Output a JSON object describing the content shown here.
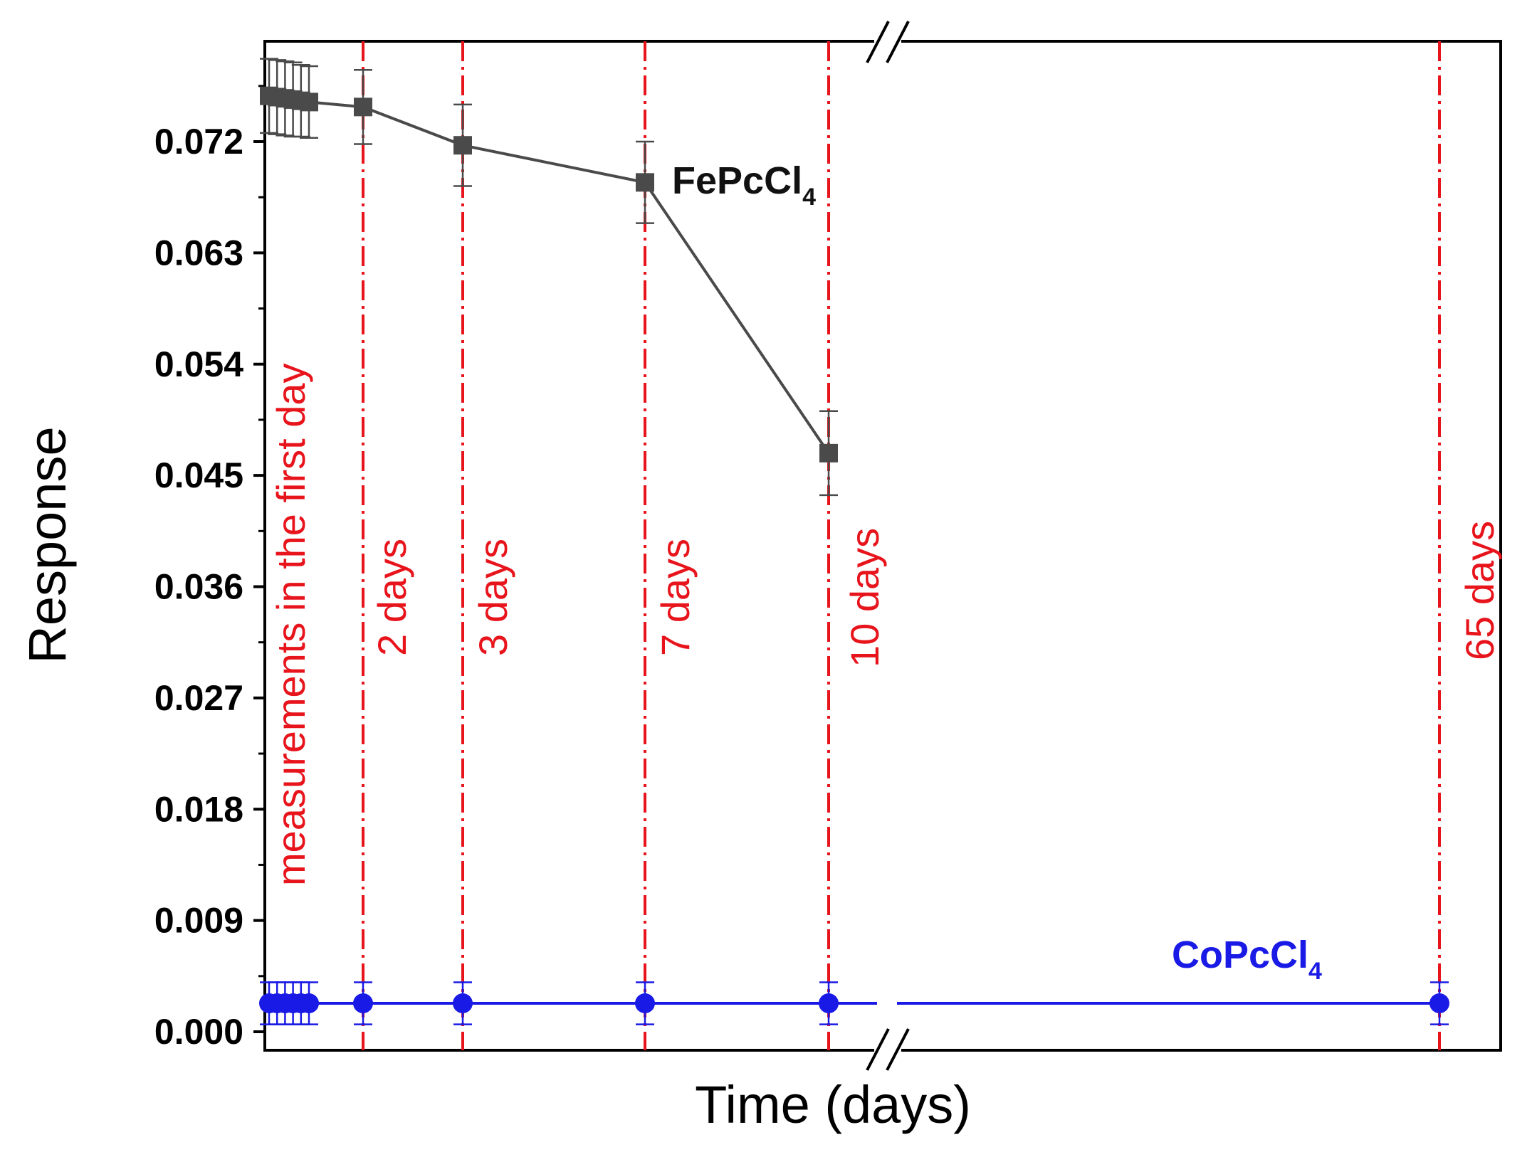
{
  "chart_data": {
    "type": "line",
    "title": "",
    "xlabel": "Time (days)",
    "ylabel": "Response",
    "ylim": [
      -0.0008,
      0.08
    ],
    "yticks": [
      "0.000",
      "0.009",
      "0.018",
      "0.027",
      "0.036",
      "0.045",
      "0.054",
      "0.063",
      "0.072"
    ],
    "ytick_values": [
      0.0,
      0.009,
      0.018,
      0.027,
      0.036,
      0.045,
      0.054,
      0.063,
      0.072
    ],
    "x_axis_break": true,
    "x_ticks_shown": false,
    "markers": [
      {
        "label": "measurements in the first day",
        "x": 1
      },
      {
        "label": "2 days",
        "x": 2
      },
      {
        "label": "3 days",
        "x": 3
      },
      {
        "label": "7 days",
        "x": 7
      },
      {
        "label": "10 days",
        "x": 10
      },
      {
        "label": "65 days",
        "x": 65
      }
    ],
    "series": [
      {
        "name": "FePcCl4",
        "label_main": "FePcCl",
        "label_sub": "4",
        "color": "#4a4a4a",
        "marker": "square",
        "points": [
          {
            "x": 0.0,
            "y": 0.0757,
            "err": 0.003
          },
          {
            "x": 0.1,
            "y": 0.0756,
            "err": 0.003
          },
          {
            "x": 0.2,
            "y": 0.0755,
            "err": 0.003
          },
          {
            "x": 0.3,
            "y": 0.0754,
            "err": 0.003
          },
          {
            "x": 0.4,
            "y": 0.0753,
            "err": 0.0029
          },
          {
            "x": 0.5,
            "y": 0.0752,
            "err": 0.0029
          },
          {
            "x": 2,
            "y": 0.0748,
            "err": 0.003
          },
          {
            "x": 3,
            "y": 0.0717,
            "err": 0.0033
          },
          {
            "x": 7,
            "y": 0.0687,
            "err": 0.0033
          },
          {
            "x": 10,
            "y": 0.0468,
            "err": 0.0034
          }
        ]
      },
      {
        "name": "CoPcCl4",
        "label_main": "CoPcCl",
        "label_sub": "4",
        "color": "#1a1ae6",
        "marker": "circle",
        "points": [
          {
            "x": 0.0,
            "y": 0.0023,
            "err": 0.0017
          },
          {
            "x": 0.1,
            "y": 0.0023,
            "err": 0.0017
          },
          {
            "x": 0.2,
            "y": 0.0023,
            "err": 0.0017
          },
          {
            "x": 0.3,
            "y": 0.0023,
            "err": 0.0017
          },
          {
            "x": 0.4,
            "y": 0.0023,
            "err": 0.0017
          },
          {
            "x": 0.5,
            "y": 0.0023,
            "err": 0.0017
          },
          {
            "x": 2,
            "y": 0.0023,
            "err": 0.0017
          },
          {
            "x": 3,
            "y": 0.0023,
            "err": 0.0017
          },
          {
            "x": 7,
            "y": 0.0023,
            "err": 0.0017
          },
          {
            "x": 10,
            "y": 0.0023,
            "err": 0.0017
          },
          {
            "x": 65,
            "y": 0.0023,
            "err": 0.0017
          }
        ]
      }
    ]
  }
}
